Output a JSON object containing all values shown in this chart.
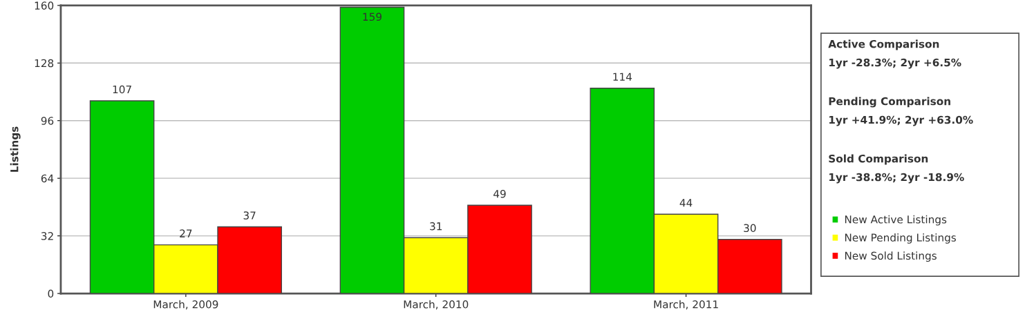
{
  "chart_data": {
    "type": "bar",
    "ylabel": "Listings",
    "categories": [
      "March, 2009",
      "March, 2010",
      "March, 2011"
    ],
    "series": [
      {
        "name": "New Active Listings",
        "color": "#00cc00",
        "values": [
          107,
          159,
          114
        ]
      },
      {
        "name": "New Pending Listings",
        "color": "#ffff00",
        "values": [
          27,
          31,
          44
        ]
      },
      {
        "name": "New Sold Listings",
        "color": "#ff0000",
        "values": [
          37,
          49,
          30
        ]
      }
    ],
    "ylim": [
      0,
      160
    ],
    "yticks": [
      0,
      32,
      64,
      96,
      128,
      160
    ],
    "grid": "y",
    "legend": "right",
    "data_labels": true,
    "annotations": [
      "Active Comparison",
      "1yr -28.3%; 2yr +6.5%",
      "Pending Comparison",
      "1yr +41.9%; 2yr +63.0%",
      "Sold Comparison",
      "1yr -38.8%; 2yr -18.9%"
    ]
  }
}
